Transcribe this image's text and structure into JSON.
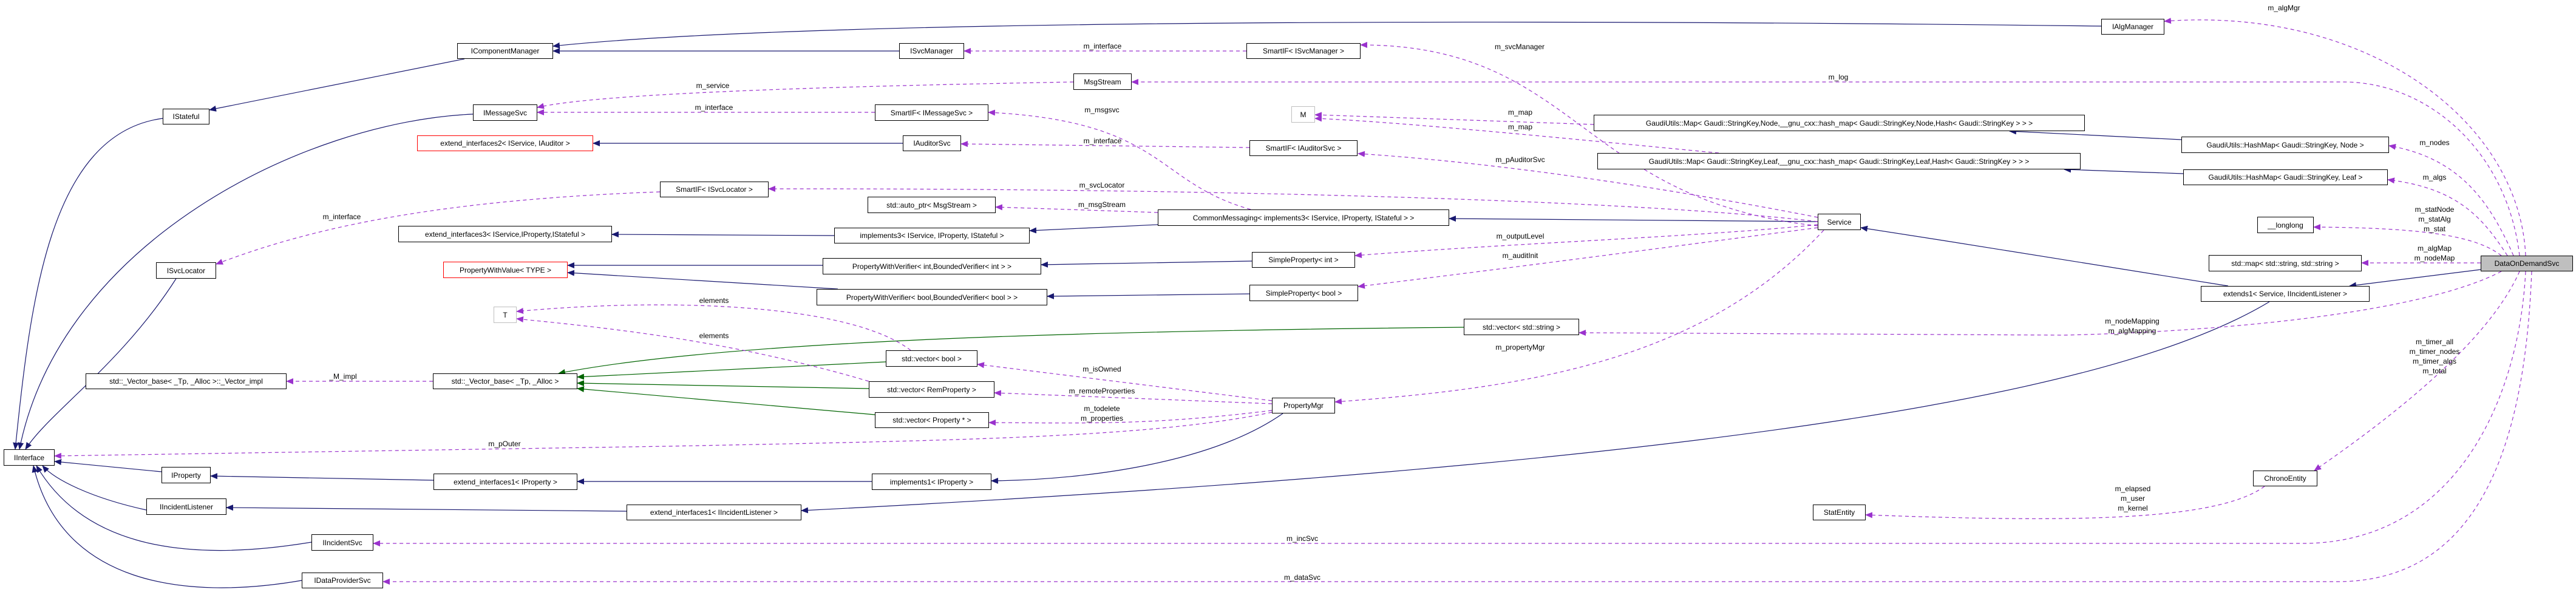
{
  "colors": {
    "inheritance": "#191970",
    "usage": "#9a32cd",
    "template": "#006400",
    "current_node_fill": "#bfbfbf",
    "undocumented_border": "#ff0000",
    "external_border": "#bfbfbf"
  },
  "nodes": [
    {
      "label": "IComponentManager"
    },
    {
      "label": "IStateful"
    },
    {
      "label": "IMessageSvc"
    },
    {
      "label": "extend_interfaces2< IService, IAuditor >",
      "style": "red"
    },
    {
      "label": "SmartIF< ISvcLocator >"
    },
    {
      "label": "extend_interfaces3< IService,IProperty,IStateful >"
    },
    {
      "label": "ISvcLocator"
    },
    {
      "label": "PropertyWithValue< TYPE >",
      "style": "red"
    },
    {
      "label": "T",
      "style": "gray"
    },
    {
      "label": "std::_Vector_base< _Tp, _Alloc >::_Vector_impl"
    },
    {
      "label": "std::_Vector_base< _Tp, _Alloc >"
    },
    {
      "label": "IInterface"
    },
    {
      "label": "IProperty"
    },
    {
      "label": "extend_interfaces1< IProperty >"
    },
    {
      "label": "IIncidentListener"
    },
    {
      "label": "extend_interfaces1< IIncidentListener >"
    },
    {
      "label": "IIncidentSvc"
    },
    {
      "label": "IDataProviderSvc"
    },
    {
      "label": "ISvcManager"
    },
    {
      "label": "SmartIF< ISvcManager >"
    },
    {
      "label": "MsgStream"
    },
    {
      "label": "SmartIF< IMessageSvc >"
    },
    {
      "label": "M",
      "style": "gray"
    },
    {
      "label": "IAuditorSvc"
    },
    {
      "label": "SmartIF< IAuditorSvc >"
    },
    {
      "label": "std::auto_ptr< MsgStream >"
    },
    {
      "label": "CommonMessaging< implements3< IService, IProperty, IStateful > >"
    },
    {
      "label": "implements3< IService, IProperty, IStateful >"
    },
    {
      "label": "SimpleProperty< int >"
    },
    {
      "label": "PropertyWithVerifier< int,BoundedVerifier< int > >"
    },
    {
      "label": "PropertyWithVerifier< bool,BoundedVerifier< bool > >"
    },
    {
      "label": "SimpleProperty< bool >"
    },
    {
      "label": "std::vector< bool >"
    },
    {
      "label": "std::vector< RemProperty >"
    },
    {
      "label": "std::vector< Property * >"
    },
    {
      "label": "PropertyMgr"
    },
    {
      "label": "implements1< IProperty >"
    },
    {
      "label": "GaudiUtils::Map< Gaudi::StringKey,Node,__gnu_cxx::hash_map< Gaudi::StringKey,Node,Hash< Gaudi::StringKey > > >"
    },
    {
      "label": "GaudiUtils::Map< Gaudi::StringKey,Leaf,__gnu_cxx::hash_map< Gaudi::StringKey,Leaf,Hash< Gaudi::StringKey > > >"
    },
    {
      "label": "Service"
    },
    {
      "label": "std::vector< std::string >"
    },
    {
      "label": "StatEntity"
    },
    {
      "label": "IAlgManager"
    },
    {
      "label": "GaudiUtils::HashMap< Gaudi::StringKey, Node >"
    },
    {
      "label": "GaudiUtils::HashMap< Gaudi::StringKey, Leaf >"
    },
    {
      "label": "__longlong"
    },
    {
      "label": "std::map< std::string, std::string >"
    },
    {
      "label": "DataOnDemandSvc",
      "style": "current"
    },
    {
      "label": "extends1< Service, IIncidentListener >"
    },
    {
      "label": "ChronoEntity"
    }
  ],
  "edge_labels": [
    "m_algMgr",
    "m_svcManager",
    "m_log",
    "m_nodes",
    "m_algs",
    "m_statNode",
    "m_statAlg",
    "m_stat",
    "m_algMap",
    "m_nodeMap",
    "m_map",
    "m_map",
    "m_pAuditorSvc",
    "m_interface",
    "m_service",
    "m_interface",
    "m_msgsvc",
    "m_interface",
    "m_svcLocator",
    "m_msgStream",
    "m_interface",
    "m_outputLevel",
    "m_auditInit",
    "elements",
    "elements",
    "_M_impl",
    "m_nodeMapping",
    "m_algMapping",
    "m_propertyMgr",
    "m_isOwned",
    "m_remoteProperties",
    "m_todelete",
    "m_properties",
    "m_pOuter",
    "m_timer_all",
    "m_timer_nodes",
    "m_timer_algs",
    "m_total",
    "m_elapsed",
    "m_user",
    "m_kernel",
    "m_incSvc",
    "m_dataSvc"
  ]
}
